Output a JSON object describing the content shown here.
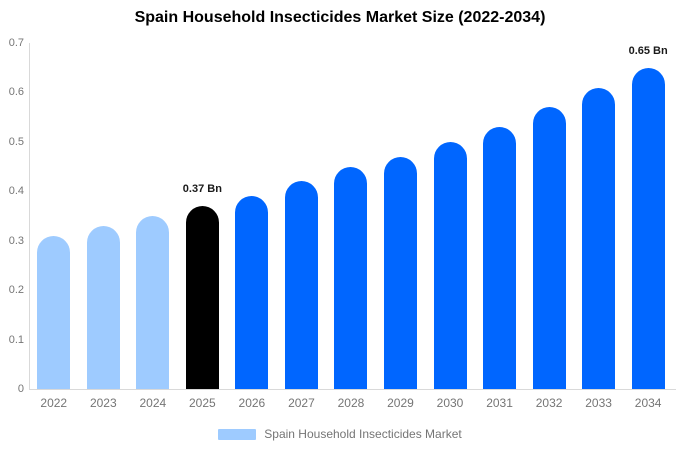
{
  "title": "Spain Household Insecticides Market Size (2022-2034)",
  "chart_data": {
    "type": "bar",
    "title": "Spain Household Insecticides Market Size (2022-2034)",
    "categories": [
      "2022",
      "2023",
      "2024",
      "2025",
      "2026",
      "2027",
      "2028",
      "2029",
      "2030",
      "2031",
      "2032",
      "2033",
      "2034"
    ],
    "values": [
      0.31,
      0.33,
      0.35,
      0.37,
      0.39,
      0.42,
      0.45,
      0.47,
      0.5,
      0.53,
      0.57,
      0.61,
      0.65
    ],
    "unit": "Bn",
    "bar_colors": [
      "#9ECBFF",
      "#9ECBFF",
      "#9ECBFF",
      "#000000",
      "#0066FF",
      "#0066FF",
      "#0066FF",
      "#0066FF",
      "#0066FF",
      "#0066FF",
      "#0066FF",
      "#0066FF",
      "#0066FF"
    ],
    "value_labels": [
      "",
      "",
      "",
      "0.37 Bn",
      "",
      "",
      "",
      "",
      "",
      "",
      "",
      "",
      "0.65 Bn"
    ],
    "xlabel": "",
    "ylabel": "",
    "ylim": [
      0,
      0.7
    ],
    "yticks": [
      0,
      0.1,
      0.2,
      0.3,
      0.4,
      0.5,
      0.6,
      0.7
    ],
    "ytick_labels": [
      "0",
      "0.1",
      "0.2",
      "0.3",
      "0.4",
      "0.5",
      "0.6",
      "0.7"
    ],
    "grid": false,
    "legend_position": "bottom",
    "legend": [
      {
        "label": "Spain Household Insecticides Market",
        "color": "#9ECBFF"
      }
    ]
  },
  "colors": {
    "historical_bar": "#9ECBFF",
    "base_year_bar": "#000000",
    "forecast_bar": "#0066FF",
    "axis_line": "#D9D9D9",
    "axis_text": "#757575",
    "title_text": "#000000",
    "background": "#FFFFFF"
  },
  "legend": {
    "label": "Spain Household Insecticides Market",
    "swatch_color": "#9ECBFF"
  }
}
